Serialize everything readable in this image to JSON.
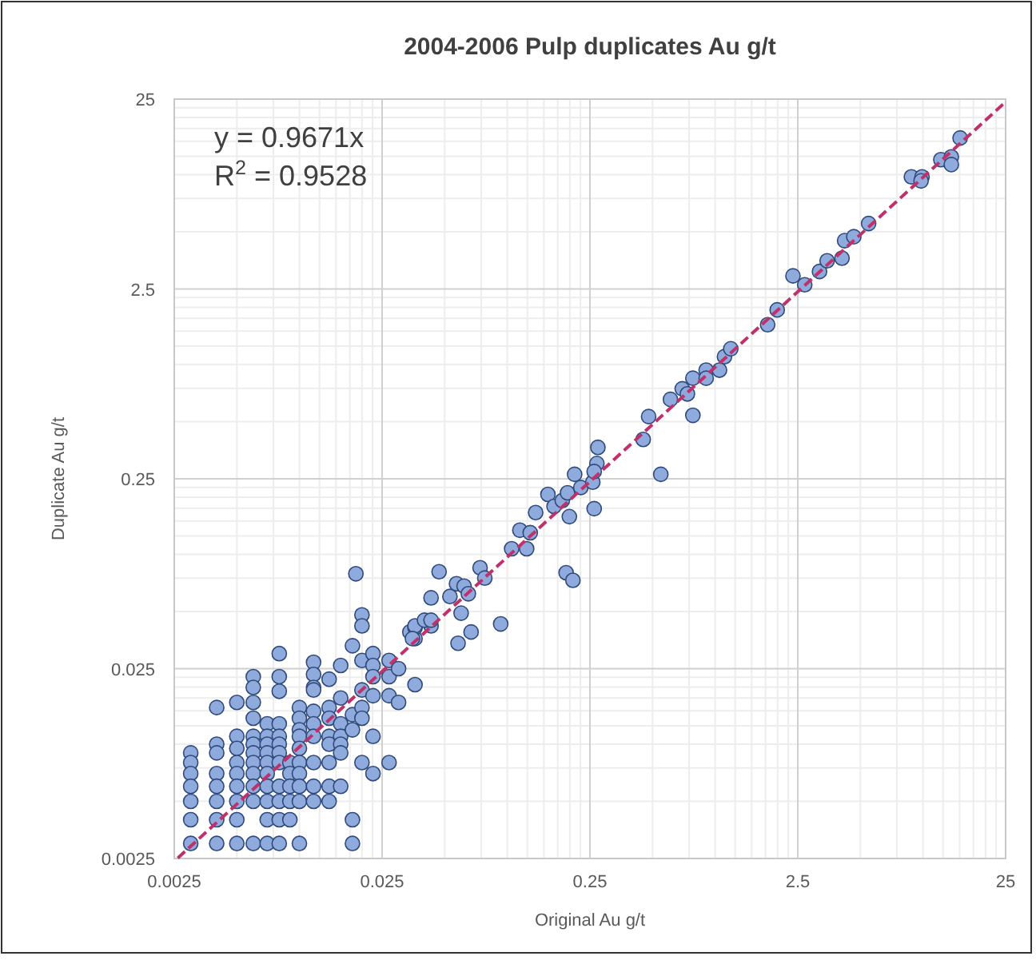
{
  "chart_data": {
    "type": "scatter",
    "title": "2004-2006 Pulp duplicates Au g/t",
    "xlabel": "Original Au g/t",
    "ylabel": "Duplicate Au g/t",
    "log": "xy",
    "grid": true,
    "xlim": [
      0.0025,
      25
    ],
    "ylim": [
      0.0025,
      25
    ],
    "xticks": [
      0.0025,
      0.025,
      0.25,
      2.5,
      25
    ],
    "yticks": [
      0.0025,
      0.025,
      0.25,
      2.5,
      25
    ],
    "annotations": [
      "y = 0.9671x",
      "R$^{2}$ = 0.9528"
    ],
    "series": [
      {
        "color": "#8faadc",
        "marker": "circle",
        "x": [
          0.003,
          0.003,
          0.003,
          0.003,
          0.003,
          0.003,
          0.003,
          0.004,
          0.004,
          0.004,
          0.004,
          0.004,
          0.004,
          0.004,
          0.004,
          0.005,
          0.005,
          0.005,
          0.005,
          0.005,
          0.005,
          0.005,
          0.005,
          0.005,
          0.006,
          0.006,
          0.006,
          0.006,
          0.006,
          0.006,
          0.006,
          0.006,
          0.006,
          0.006,
          0.006,
          0.006,
          0.007,
          0.007,
          0.007,
          0.007,
          0.007,
          0.007,
          0.007,
          0.007,
          0.007,
          0.007,
          0.008,
          0.008,
          0.008,
          0.008,
          0.008,
          0.008,
          0.008,
          0.008,
          0.008,
          0.008,
          0.008,
          0.008,
          0.009,
          0.009,
          0.009,
          0.009,
          0.009,
          0.01,
          0.01,
          0.01,
          0.01,
          0.01,
          0.01,
          0.01,
          0.01,
          0.01,
          0.01,
          0.0117,
          0.0117,
          0.0117,
          0.0117,
          0.0117,
          0.0117,
          0.0117,
          0.0117,
          0.0117,
          0.0117,
          0.0139,
          0.0139,
          0.0139,
          0.0139,
          0.0139,
          0.0139,
          0.0139,
          0.0139,
          0.0158,
          0.0158,
          0.0158,
          0.0158,
          0.0158,
          0.0158,
          0.0158,
          0.018,
          0.018,
          0.018,
          0.018,
          0.018,
          0.02,
          0.02,
          0.02,
          0.02,
          0.02,
          0.02,
          0.02,
          0.0226,
          0.0226,
          0.0226,
          0.0226,
          0.0226,
          0.0226,
          0.027,
          0.027,
          0.027,
          0.027,
          0.03,
          0.03,
          0.034,
          0.036,
          0.036,
          0.036,
          0.043,
          0.0187,
          0.047,
          0.043,
          0.036,
          0.04,
          0.043,
          0.035,
          0.053,
          0.057,
          0.062,
          0.065,
          0.074,
          0.078,
          0.06,
          0.067,
          0.058,
          0.093,
          0.105,
          0.124,
          0.115,
          0.129,
          0.137,
          0.157,
          0.168,
          0.184,
          0.199,
          0.195,
          0.211,
          0.226,
          0.258,
          0.262,
          0.273,
          0.27,
          0.262,
          0.192,
          0.207,
          0.451,
          0.479,
          0.548,
          0.61,
          0.695,
          0.782,
          0.736,
          0.782,
          0.906,
          0.906,
          1.05,
          1.11,
          1.19,
          1.79,
          1.99,
          2.37,
          2.7,
          3.18,
          3.46,
          4.08,
          4.2,
          4.65,
          5.48,
          8.8,
          9.9,
          9.8,
          12.2,
          13.7,
          13.7,
          15.1
        ],
        "values": [
          0.009,
          0.008,
          0.007,
          0.006,
          0.005,
          0.004,
          0.003,
          0.0156,
          0.01,
          0.009,
          0.007,
          0.006,
          0.005,
          0.004,
          0.003,
          0.0166,
          0.011,
          0.0095,
          0.008,
          0.007,
          0.006,
          0.005,
          0.004,
          0.003,
          0.0227,
          0.0199,
          0.0166,
          0.0137,
          0.011,
          0.01,
          0.009,
          0.008,
          0.007,
          0.006,
          0.005,
          0.003,
          0.0128,
          0.011,
          0.01,
          0.009,
          0.008,
          0.007,
          0.006,
          0.005,
          0.004,
          0.003,
          0.03,
          0.0227,
          0.019,
          0.0128,
          0.011,
          0.01,
          0.009,
          0.008,
          0.006,
          0.005,
          0.004,
          0.003,
          0.008,
          0.007,
          0.006,
          0.005,
          0.004,
          0.0156,
          0.0137,
          0.0119,
          0.011,
          0.0095,
          0.008,
          0.007,
          0.006,
          0.005,
          0.003,
          0.027,
          0.0233,
          0.0199,
          0.0193,
          0.0149,
          0.0128,
          0.011,
          0.008,
          0.006,
          0.005,
          0.022,
          0.0156,
          0.0137,
          0.011,
          0.01,
          0.008,
          0.006,
          0.005,
          0.026,
          0.0175,
          0.0128,
          0.011,
          0.01,
          0.009,
          0.006,
          0.033,
          0.0143,
          0.0119,
          0.004,
          0.003,
          0.048,
          0.042,
          0.0276,
          0.0193,
          0.0156,
          0.0137,
          0.008,
          0.03,
          0.026,
          0.0227,
          0.018,
          0.011,
          0.007,
          0.0276,
          0.0227,
          0.018,
          0.008,
          0.025,
          0.0166,
          0.039,
          0.036,
          0.041,
          0.0206,
          0.042,
          0.079,
          0.081,
          0.059,
          0.042,
          0.045,
          0.045,
          0.036,
          0.06,
          0.07,
          0.068,
          0.062,
          0.085,
          0.075,
          0.049,
          0.039,
          0.034,
          0.043,
          0.107,
          0.107,
          0.134,
          0.13,
          0.166,
          0.207,
          0.179,
          0.192,
          0.158,
          0.211,
          0.264,
          0.225,
          0.24,
          0.174,
          0.366,
          0.301,
          0.273,
          0.08,
          0.073,
          0.403,
          0.532,
          0.264,
          0.655,
          0.745,
          0.847,
          0.7,
          0.54,
          0.934,
          0.847,
          0.934,
          1.1,
          1.21,
          1.62,
          1.94,
          2.93,
          2.63,
          3.09,
          3.52,
          3.63,
          4.49,
          4.71,
          5.53,
          9.74,
          9.74,
          9.27,
          12.0,
          12.4,
          11.3,
          15.6
        ]
      },
      {
        "type": "line",
        "color": "#c0306a",
        "line_style": "dashed",
        "x": [
          0.0026,
          25
        ],
        "values": [
          0.0025145,
          24.1775
        ]
      }
    ]
  }
}
